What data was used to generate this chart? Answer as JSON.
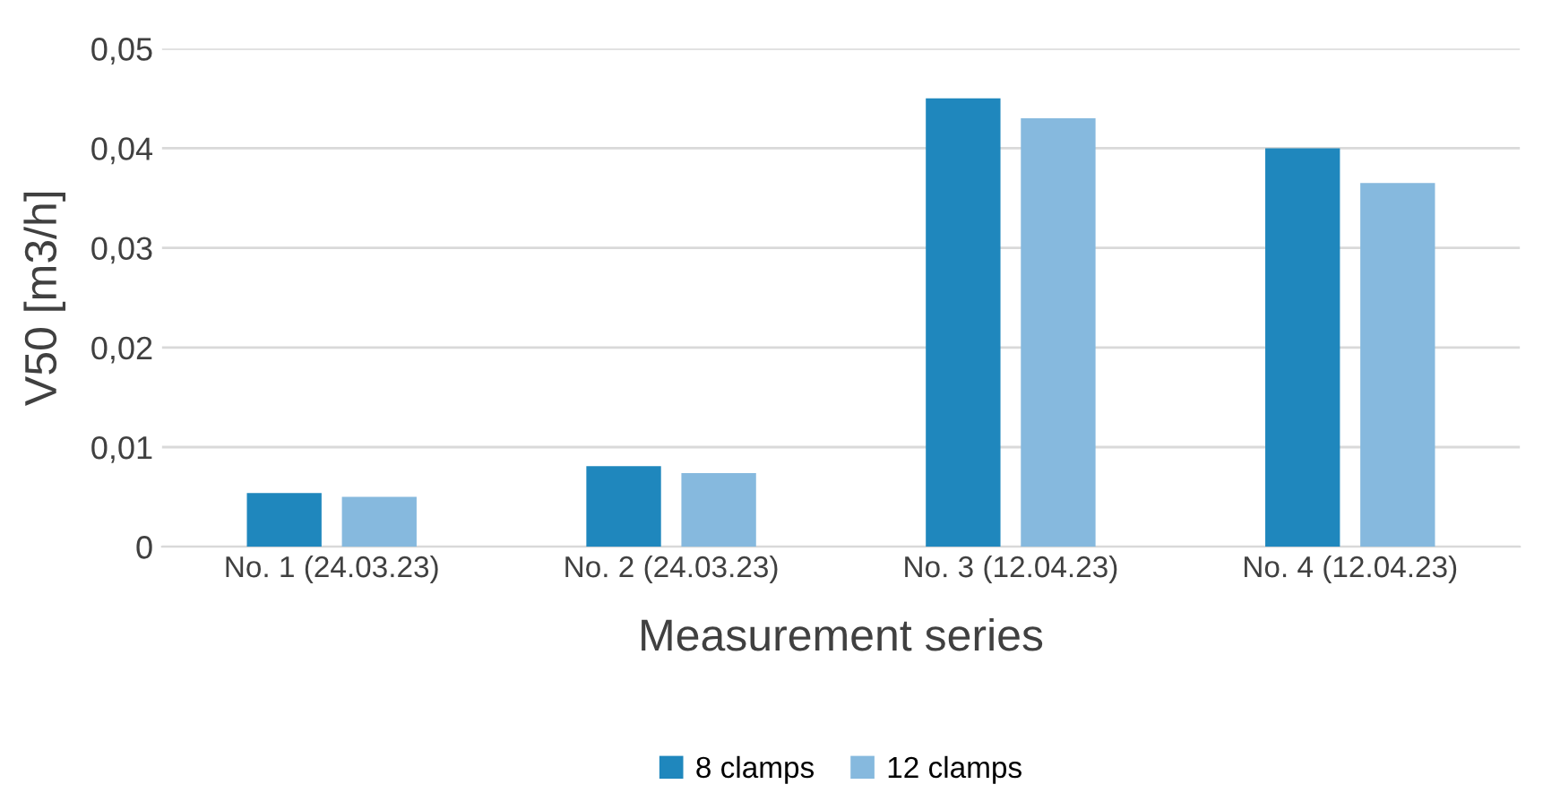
{
  "chart_data": {
    "type": "bar",
    "xlabel": "Measurement series",
    "ylabel": "V50 [m3/h]",
    "categories": [
      "No. 1 (24.03.23)",
      "No. 2 (24.03.23)",
      "No. 3 (12.04.23)",
      "No. 4 (12.04.23)"
    ],
    "series": [
      {
        "name": "8 clamps",
        "color": "#1f87bd",
        "values": [
          0.0054,
          0.0081,
          0.045,
          0.04
        ]
      },
      {
        "name": "12 clamps",
        "color": "#86b9de",
        "values": [
          0.005,
          0.0074,
          0.043,
          0.0365
        ]
      }
    ],
    "ylim": [
      0,
      0.05
    ],
    "yticks": [
      0,
      {
        "value": 0.01,
        "label": "0,01"
      },
      {
        "value": 0.02,
        "label": "0,02"
      },
      {
        "value": 0.03,
        "label": "0,03"
      },
      {
        "value": 0.04,
        "label": "0,04"
      },
      {
        "value": 0.05,
        "label": "0,05"
      }
    ],
    "grid": "y",
    "legend": "bottom"
  }
}
